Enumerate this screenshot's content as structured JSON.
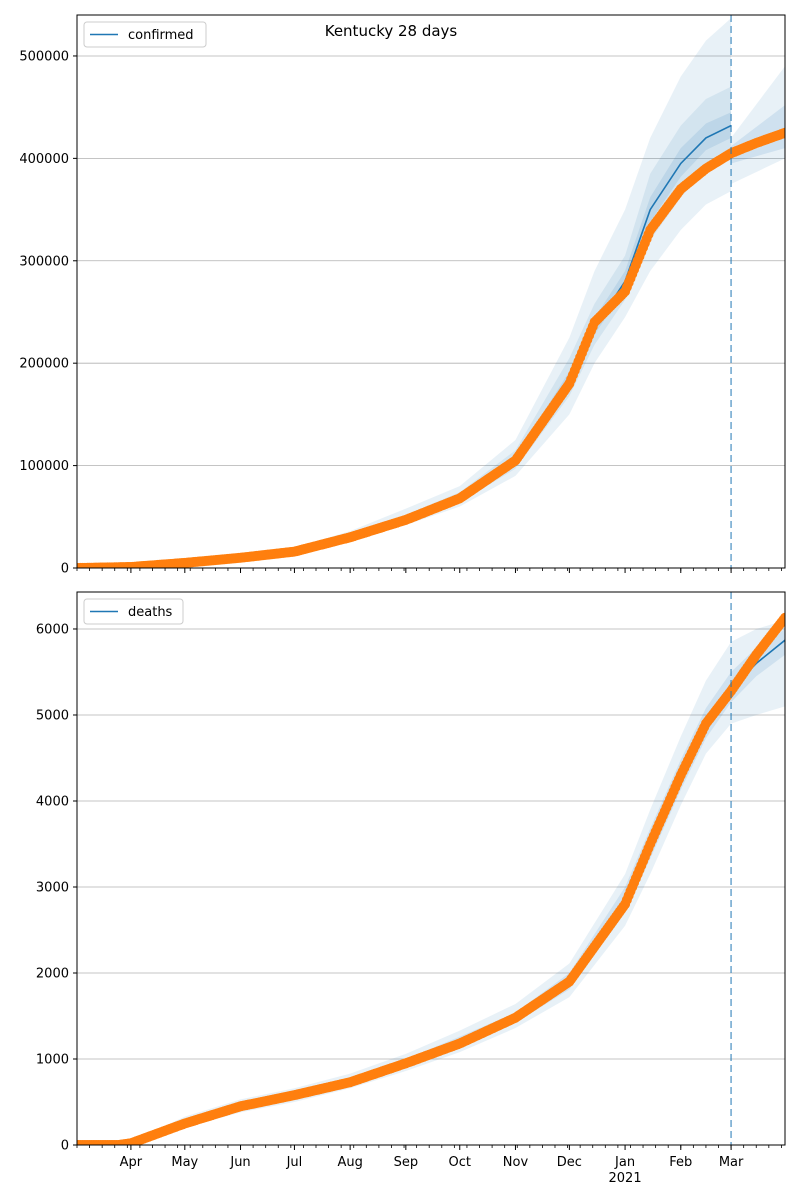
{
  "chart_data": [
    {
      "type": "line",
      "title": "Kentucky 28 days",
      "xlabel": "",
      "ylabel": "",
      "x_ticks": [
        "Apr",
        "May",
        "Jun",
        "Jul",
        "Aug",
        "Sep",
        "Oct",
        "Nov",
        "Dec",
        "Jan",
        "Feb",
        "Mar"
      ],
      "x_ticks_secondary": [
        "2021"
      ],
      "y_ticks": [
        0,
        100000,
        200000,
        300000,
        400000,
        500000
      ],
      "ylim": [
        0,
        540000
      ],
      "xlim": [
        "2020-03-02",
        "2021-03-31"
      ],
      "grid": "horizontal",
      "legend_placement": "top-left",
      "forecast_start": "2021-03-01",
      "colors": {
        "model": "#1f77b4",
        "observed": "#ff7f0e",
        "band": "#1f77b4"
      },
      "series": [
        {
          "name": "confirmed",
          "kind": "model-median",
          "x": [
            "2020-03-02",
            "2020-04-01",
            "2020-05-01",
            "2020-06-01",
            "2020-07-01",
            "2020-08-01",
            "2020-09-01",
            "2020-10-01",
            "2020-11-01",
            "2020-12-01",
            "2020-12-15",
            "2021-01-01",
            "2021-01-15",
            "2021-02-01",
            "2021-02-15",
            "2021-03-01"
          ],
          "y": [
            0,
            1000,
            5000,
            10000,
            17000,
            30000,
            48000,
            68000,
            105000,
            185000,
            235000,
            280000,
            350000,
            395000,
            420000,
            432000
          ]
        },
        {
          "kind": "observed",
          "x": [
            "2020-03-02",
            "2020-04-01",
            "2020-05-01",
            "2020-06-01",
            "2020-07-01",
            "2020-08-01",
            "2020-09-01",
            "2020-10-01",
            "2020-11-01",
            "2020-12-01",
            "2020-12-15",
            "2021-01-01",
            "2021-01-15",
            "2021-02-01",
            "2021-02-15",
            "2021-03-01",
            "2021-03-15",
            "2021-03-31"
          ],
          "y": [
            0,
            1000,
            5000,
            10000,
            16000,
            30000,
            47000,
            68000,
            105000,
            180000,
            240000,
            270000,
            330000,
            370000,
            390000,
            405000,
            415000,
            425000
          ]
        }
      ],
      "bands": [
        {
          "level": "outer",
          "lower": [
            0,
            800,
            4000,
            8500,
            14000,
            26000,
            42000,
            60000,
            90000,
            150000,
            200000,
            245000,
            290000,
            330000,
            355000,
            368000
          ],
          "upper": [
            0,
            1300,
            6000,
            12000,
            20000,
            36000,
            58000,
            80000,
            125000,
            225000,
            290000,
            350000,
            420000,
            480000,
            515000,
            537000
          ]
        },
        {
          "level": "middle",
          "lower": [
            0,
            900,
            4500,
            9200,
            15000,
            28000,
            45000,
            64000,
            97000,
            168000,
            218000,
            262000,
            320000,
            362000,
            388000,
            400000
          ],
          "upper": [
            0,
            1100,
            5500,
            11000,
            19000,
            33000,
            52000,
            74000,
            115000,
            205000,
            258000,
            305000,
            385000,
            432000,
            458000,
            470000
          ]
        },
        {
          "level": "inner",
          "lower": [
            0,
            950,
            4800,
            9600,
            16000,
            29000,
            46500,
            66000,
            101000,
            178000,
            228000,
            272000,
            338000,
            382000,
            408000,
            420000
          ],
          "upper": [
            0,
            1050,
            5200,
            10400,
            18000,
            31000,
            49500,
            70000,
            109000,
            192000,
            244000,
            290000,
            362000,
            410000,
            434000,
            445000
          ]
        }
      ],
      "forecast_bands": [
        {
          "level": "outer",
          "x": [
            "2021-03-01",
            "2021-03-31"
          ],
          "lower": [
            375000,
            400000
          ],
          "upper": [
            420000,
            490000
          ]
        },
        {
          "level": "inner",
          "x": [
            "2021-03-01",
            "2021-03-31"
          ],
          "lower": [
            395000,
            410000
          ],
          "upper": [
            412000,
            452000
          ]
        }
      ]
    },
    {
      "type": "line",
      "title": "",
      "xlabel": "",
      "ylabel": "",
      "x_ticks": [
        "Apr",
        "May",
        "Jun",
        "Jul",
        "Aug",
        "Sep",
        "Oct",
        "Nov",
        "Dec",
        "Jan",
        "Feb",
        "Mar"
      ],
      "x_ticks_secondary": [
        "2021"
      ],
      "y_ticks": [
        0,
        1000,
        2000,
        3000,
        4000,
        5000,
        6000
      ],
      "ylim": [
        0,
        6430
      ],
      "xlim": [
        "2020-03-02",
        "2021-03-31"
      ],
      "grid": "horizontal",
      "legend_placement": "top-left",
      "forecast_start": "2021-03-01",
      "colors": {
        "model": "#1f77b4",
        "observed": "#ff7f0e",
        "band": "#1f77b4"
      },
      "series": [
        {
          "name": "deaths",
          "kind": "model-median",
          "x": [
            "2020-03-02",
            "2020-04-01",
            "2020-05-01",
            "2020-06-01",
            "2020-07-01",
            "2020-08-01",
            "2020-09-01",
            "2020-10-01",
            "2020-11-01",
            "2020-12-01",
            "2021-01-01",
            "2021-01-15",
            "2021-02-01",
            "2021-02-15",
            "2021-03-01",
            "2021-03-15",
            "2021-03-31"
          ],
          "y": [
            0,
            20,
            260,
            450,
            580,
            740,
            950,
            1200,
            1480,
            1900,
            2850,
            3500,
            4300,
            4900,
            5300,
            5600,
            5870
          ]
        },
        {
          "kind": "observed",
          "x": [
            "2020-03-02",
            "2020-03-25",
            "2020-04-01",
            "2020-05-01",
            "2020-06-01",
            "2020-07-01",
            "2020-08-01",
            "2020-09-01",
            "2020-10-01",
            "2020-11-01",
            "2020-12-01",
            "2021-01-01",
            "2021-01-15",
            "2021-02-01",
            "2021-02-15",
            "2021-03-01",
            "2021-03-15",
            "2021-03-31"
          ],
          "y": [
            0,
            0,
            20,
            250,
            450,
            580,
            730,
            950,
            1180,
            1480,
            1900,
            2800,
            3500,
            4300,
            4900,
            5280,
            5700,
            6130
          ]
        }
      ],
      "bands": [
        {
          "level": "outer",
          "lower": [
            0,
            10,
            200,
            380,
            500,
            660,
            860,
            1080,
            1360,
            1720,
            2550,
            3150,
            3950,
            4550,
            4900,
            5000,
            5100
          ],
          "upper": [
            0,
            40,
            330,
            530,
            660,
            830,
            1060,
            1330,
            1640,
            2110,
            3150,
            3900,
            4750,
            5400,
            5850,
            6000,
            6100
          ]
        },
        {
          "level": "inner",
          "lower": [
            0,
            15,
            230,
            410,
            540,
            700,
            900,
            1140,
            1420,
            1810,
            2700,
            3330,
            4130,
            4730,
            5150,
            5450,
            5700
          ],
          "upper": [
            0,
            28,
            290,
            490,
            620,
            780,
            1000,
            1260,
            1540,
            2000,
            3000,
            3680,
            4480,
            5080,
            5500,
            5780,
            6000
          ]
        }
      ]
    }
  ]
}
